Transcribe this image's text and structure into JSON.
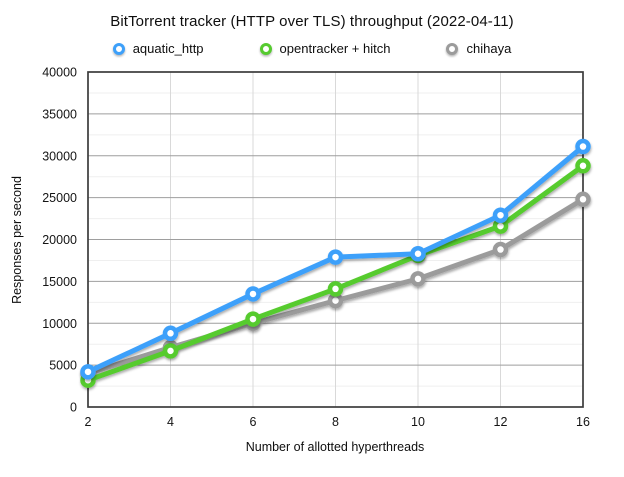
{
  "chart_data": {
    "type": "line",
    "title": "BitTorrent tracker (HTTP over TLS) throughput (2022-04-11)",
    "xlabel": "Number of allotted hyperthreads",
    "ylabel": "Responses per second",
    "x_categories": [
      2,
      4,
      6,
      8,
      10,
      12,
      16
    ],
    "y_ticks": [
      0,
      5000,
      10000,
      15000,
      20000,
      25000,
      30000,
      35000,
      40000
    ],
    "y_minor_step": 2500,
    "ylim": [
      0,
      40000
    ],
    "grid": true,
    "legend_position": "top",
    "series": [
      {
        "name": "aquatic_http",
        "color": "#3DA0FA",
        "values": [
          4200,
          8800,
          13500,
          17900,
          18300,
          22900,
          31100
        ]
      },
      {
        "name": "opentracker + hitch",
        "color": "#56CB2F",
        "values": [
          3200,
          6700,
          10500,
          14100,
          18100,
          21600,
          28800
        ]
      },
      {
        "name": "chihaya",
        "color": "#9B9B9B",
        "values": [
          4000,
          7100,
          10000,
          12700,
          15300,
          18800,
          24800
        ]
      }
    ],
    "style_colors": {
      "minor_grid": "#efefef",
      "major_grid": "#9e9e9e",
      "vertical_grid": "#d9d9d9",
      "plot_border": "#3c3c3c"
    }
  }
}
